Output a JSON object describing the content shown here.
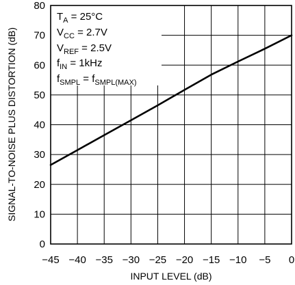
{
  "chart_data": {
    "type": "line",
    "xlabel": "INPUT LEVEL (dB)",
    "ylabel": "SIGNAL-TO-NOISE PLUS DISTORTION (dB)",
    "xlim": [
      -45,
      0
    ],
    "ylim": [
      0,
      80
    ],
    "xticks": [
      -45,
      -40,
      -35,
      -30,
      -25,
      -20,
      -15,
      -10,
      -5,
      0
    ],
    "xtick_labels": [
      "−45",
      "−40",
      "−35",
      "−30",
      "−25",
      "−20",
      "−15",
      "−10",
      "−5",
      "0"
    ],
    "yticks": [
      0,
      10,
      20,
      30,
      40,
      50,
      60,
      70,
      80
    ],
    "ytick_labels": [
      "0",
      "10",
      "20",
      "30",
      "40",
      "50",
      "60",
      "70",
      "80"
    ],
    "grid": true,
    "series": [
      {
        "x": [
          -45,
          -40,
          -35,
          -30,
          -25,
          -20,
          -15,
          -10,
          -5,
          0
        ],
        "y": [
          26.5,
          31.5,
          36.5,
          41.5,
          46.5,
          51.7,
          56.8,
          61.2,
          65.5,
          70
        ]
      }
    ],
    "annotation_lines": [
      {
        "main": "T",
        "sub": "A",
        "rest": " = 25°C"
      },
      {
        "main": "V",
        "sub": "CC",
        "rest": " = 2.7V"
      },
      {
        "main": "V",
        "sub": "REF",
        "rest": " = 2.5V"
      },
      {
        "main": "f",
        "sub": "IN",
        "rest": " = 1kHz"
      },
      {
        "main": "f",
        "sub": "SMPL",
        "rest": " = f",
        "sub2": "SMPL(MAX)"
      }
    ]
  }
}
